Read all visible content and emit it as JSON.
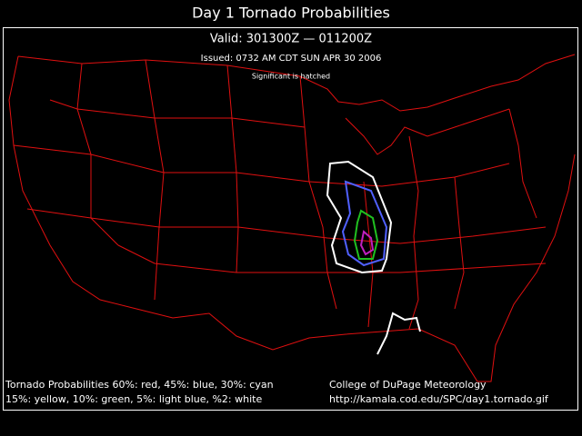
{
  "header": {
    "title": "Day 1 Tornado Probabilities",
    "valid": "Valid: 301300Z — 011200Z",
    "issued": "Issued: 0732 AM CDT SUN APR 30 2006",
    "note": "Significant is hatched"
  },
  "legend": {
    "lines": [
      "Tornado Probabilities 60%: red, 45%: blue, 30%: cyan",
      "15%: yellow, 10%: green, 5%: light blue, %2: white"
    ]
  },
  "credit": {
    "lines": [
      "College of DuPage Meteorology",
      "http://kamala.cod.edu/SPC/day1.tornado.gif"
    ]
  }
}
